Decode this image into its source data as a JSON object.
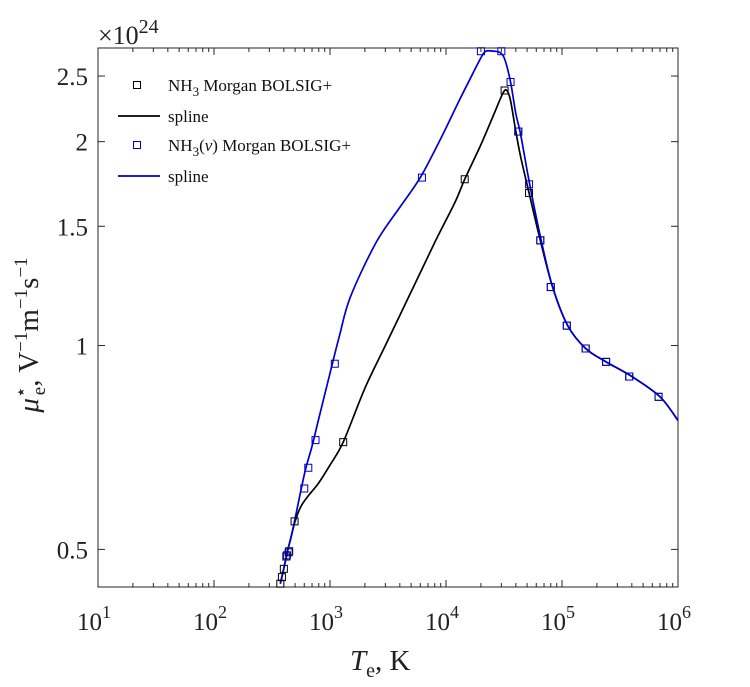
{
  "chart_data": {
    "type": "line",
    "xscale": "log",
    "yscale": "log",
    "xlim": [
      10,
      1000000
    ],
    "ylim": [
      0.44,
      2.75
    ],
    "x_ticks": [
      {
        "value": 10,
        "base": "10",
        "exp": "1"
      },
      {
        "value": 100,
        "base": "10",
        "exp": "2"
      },
      {
        "value": 1000,
        "base": "10",
        "exp": "3"
      },
      {
        "value": 10000,
        "base": "10",
        "exp": "4"
      },
      {
        "value": 100000,
        "base": "10",
        "exp": "5"
      },
      {
        "value": 1000000,
        "base": "10",
        "exp": "6"
      }
    ],
    "y_ticks": [
      {
        "value": 0.5,
        "label": "0.5"
      },
      {
        "value": 1,
        "label": "1"
      },
      {
        "value": 1.5,
        "label": "1.5"
      },
      {
        "value": 2,
        "label": "2"
      },
      {
        "value": 2.5,
        "label": "2.5"
      }
    ],
    "y_exponent": {
      "prefix": "×10",
      "exp": "24"
    },
    "xlabel": {
      "main": "T",
      "sub": "e",
      "rest": ", K"
    },
    "ylabel": {
      "main": "μ",
      "sup": "⋆",
      "sub": "e",
      "rest": ", V",
      "e1": "−1",
      "mid": "m",
      "e2": "−1",
      "mid2": "s",
      "e3": "−1"
    },
    "grid": false,
    "legend": "top-left",
    "legend_entries": [
      {
        "kind": "marker",
        "color": "#000000",
        "parts": [
          "NH",
          "3",
          " Morgan BOLSIG+"
        ]
      },
      {
        "kind": "line",
        "color": "#000000",
        "parts": [
          "spline"
        ]
      },
      {
        "kind": "marker",
        "color": "#0000cc",
        "parts": [
          "NH",
          "3",
          "(",
          "v",
          ") Morgan BOLSIG+"
        ]
      },
      {
        "kind": "line",
        "color": "#0000cc",
        "parts": [
          "spline"
        ]
      }
    ],
    "series": [
      {
        "kind": "spline",
        "color": "#000000",
        "x": [
          373,
          390,
          410,
          430,
          460,
          500,
          560,
          650,
          800,
          1000,
          1300,
          2000,
          3000,
          5000,
          8000,
          12000,
          14500,
          20000,
          26000,
          31000,
          33500,
          36000,
          40000,
          44000,
          52000,
          65000,
          83000,
          112000,
          160000,
          240000,
          400000,
          700000,
          1000000
        ],
        "y": [
          0.445,
          0.46,
          0.478,
          0.497,
          0.52,
          0.55,
          0.578,
          0.6,
          0.627,
          0.666,
          0.72,
          0.865,
          1.0,
          1.2,
          1.42,
          1.63,
          1.76,
          1.98,
          2.2,
          2.36,
          2.38,
          2.3,
          2.07,
          1.9,
          1.68,
          1.43,
          1.22,
          1.07,
          0.99,
          0.946,
          0.9,
          0.84,
          0.775
        ]
      },
      {
        "kind": "points",
        "color": "#000000",
        "x": [
          373,
          385,
          400,
          425,
          440,
          495,
          1300,
          14500,
          32000,
          42000,
          52000,
          65000,
          80000,
          110000,
          160000,
          240000,
          380000,
          680000
        ],
        "y": [
          0.445,
          0.455,
          0.468,
          0.49,
          0.495,
          0.55,
          0.72,
          1.76,
          2.38,
          2.07,
          1.68,
          1.43,
          1.22,
          1.07,
          0.99,
          0.946,
          0.9,
          0.84
        ]
      },
      {
        "kind": "spline",
        "color": "#0000cc",
        "x": [
          373,
          390,
          410,
          430,
          460,
          500,
          560,
          620,
          700,
          800,
          1000,
          1200,
          1500,
          2500,
          4000,
          6000,
          9000,
          13000,
          17000,
          20000,
          22000,
          26000,
          29000,
          32000,
          36000,
          40000,
          44000,
          52000,
          65000,
          83000,
          112000,
          160000,
          240000,
          400000,
          700000,
          1000000
        ],
        "y": [
          0.445,
          0.46,
          0.478,
          0.497,
          0.52,
          0.555,
          0.61,
          0.66,
          0.71,
          0.78,
          0.91,
          1.03,
          1.18,
          1.42,
          1.6,
          1.77,
          2.02,
          2.3,
          2.52,
          2.66,
          2.72,
          2.72,
          2.71,
          2.65,
          2.45,
          2.2,
          2.05,
          1.75,
          1.45,
          1.22,
          1.07,
          0.99,
          0.946,
          0.9,
          0.84,
          0.775
        ]
      },
      {
        "kind": "points",
        "color": "#0000cc",
        "x": [
          420,
          445,
          600,
          650,
          750,
          1100,
          6200,
          20000,
          30000,
          36000,
          42000,
          52000,
          65000,
          80000,
          110000,
          160000,
          240000,
          380000,
          680000
        ],
        "y": [
          0.488,
          0.497,
          0.615,
          0.66,
          0.725,
          0.94,
          1.77,
          2.72,
          2.72,
          2.45,
          2.07,
          1.73,
          1.43,
          1.22,
          1.07,
          0.99,
          0.946,
          0.9,
          0.84
        ]
      }
    ]
  }
}
